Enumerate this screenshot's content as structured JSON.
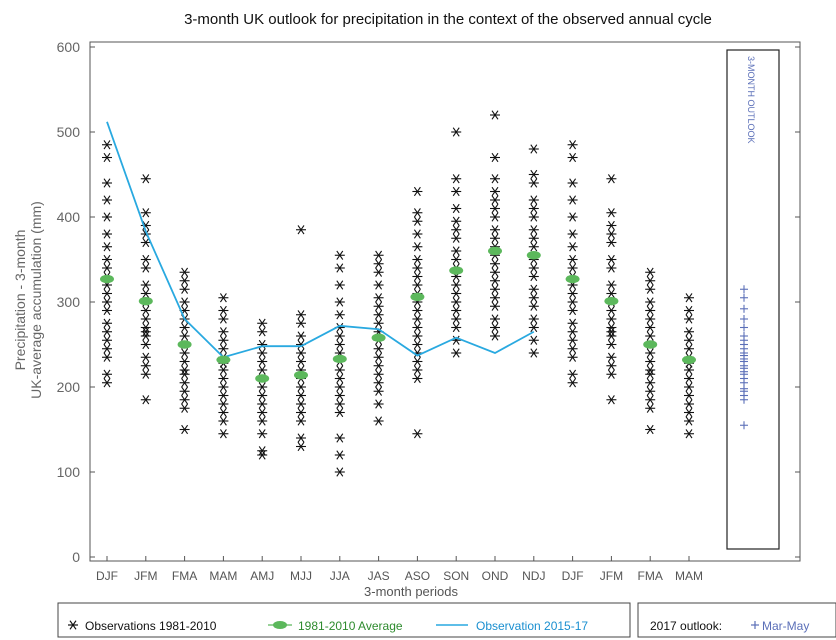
{
  "chart_data": {
    "type": "scatter",
    "title": "3-month UK outlook for precipitation in the context of the observed annual cycle",
    "xlabel": "3-month periods",
    "ylabel_line1": "Precipitation - 3-month",
    "ylabel_line2": "UK-average accumulation (mm)",
    "categories": [
      "DJF",
      "JFM",
      "FMA",
      "MAM",
      "AMJ",
      "MJJ",
      "JJA",
      "JAS",
      "ASO",
      "SON",
      "OND",
      "NDJ",
      "DJF",
      "JFM",
      "FMA",
      "MAM"
    ],
    "ylim": [
      0,
      600
    ],
    "yticks": [
      0,
      100,
      200,
      300,
      400,
      500,
      600
    ],
    "grid": false,
    "observations": [
      [
        485,
        470,
        440,
        420,
        400,
        380,
        365,
        350,
        340,
        330,
        320,
        310,
        300,
        290,
        275,
        265,
        255,
        245,
        235,
        215,
        205
      ],
      [
        445,
        405,
        390,
        380,
        370,
        350,
        340,
        320,
        310,
        300,
        290,
        280,
        270,
        265,
        260,
        250,
        235,
        225,
        215,
        185
      ],
      [
        335,
        325,
        315,
        300,
        290,
        280,
        270,
        260,
        250,
        240,
        230,
        220,
        215,
        205,
        195,
        185,
        175,
        150
      ],
      [
        305,
        290,
        280,
        265,
        255,
        245,
        235,
        228,
        220,
        210,
        200,
        190,
        180,
        170,
        160,
        145
      ],
      [
        275,
        265,
        250,
        240,
        230,
        220,
        210,
        200,
        190,
        180,
        170,
        160,
        145,
        125,
        120
      ],
      [
        385,
        285,
        275,
        260,
        250,
        240,
        230,
        220,
        210,
        200,
        190,
        180,
        170,
        160,
        140,
        130
      ],
      [
        355,
        340,
        320,
        300,
        285,
        270,
        260,
        250,
        240,
        230,
        220,
        210,
        200,
        190,
        180,
        170,
        140,
        120,
        100
      ],
      [
        355,
        345,
        335,
        320,
        305,
        295,
        285,
        275,
        265,
        255,
        245,
        235,
        225,
        215,
        205,
        195,
        180,
        160
      ],
      [
        430,
        405,
        395,
        380,
        365,
        350,
        340,
        330,
        320,
        310,
        300,
        290,
        280,
        270,
        260,
        250,
        240,
        230,
        220,
        210,
        145
      ],
      [
        500,
        445,
        430,
        410,
        395,
        385,
        375,
        360,
        350,
        340,
        330,
        320,
        310,
        300,
        290,
        280,
        270,
        255,
        240
      ],
      [
        520,
        470,
        445,
        430,
        420,
        410,
        400,
        385,
        375,
        365,
        355,
        345,
        335,
        325,
        315,
        305,
        295,
        280,
        270,
        260
      ],
      [
        480,
        450,
        440,
        420,
        410,
        400,
        385,
        375,
        365,
        350,
        340,
        330,
        315,
        305,
        295,
        280,
        270,
        255,
        240
      ],
      [
        485,
        470,
        440,
        420,
        400,
        380,
        365,
        350,
        340,
        330,
        320,
        310,
        300,
        290,
        275,
        265,
        255,
        245,
        235,
        215,
        205
      ],
      [
        445,
        405,
        390,
        380,
        370,
        350,
        340,
        320,
        310,
        300,
        290,
        280,
        270,
        265,
        260,
        250,
        235,
        225,
        215,
        185
      ],
      [
        335,
        325,
        315,
        300,
        290,
        280,
        270,
        260,
        250,
        240,
        230,
        220,
        215,
        205,
        195,
        185,
        175,
        150
      ],
      [
        305,
        290,
        280,
        265,
        255,
        245,
        235,
        228,
        220,
        210,
        200,
        190,
        180,
        170,
        160,
        145
      ]
    ],
    "average_1981_2010": [
      327,
      301,
      250,
      232,
      210,
      214,
      233,
      258,
      306,
      337,
      360,
      355,
      327,
      301,
      250,
      232
    ],
    "observation_2015_17": [
      512,
      383,
      280,
      235,
      248,
      248,
      272,
      268,
      237,
      258,
      240,
      265,
      null,
      null,
      null,
      null
    ],
    "outlook": {
      "label": "3-MONTH OUTLOOK",
      "values": [
        315,
        305,
        292,
        280,
        270,
        260,
        255,
        250,
        245,
        240,
        237,
        233,
        230,
        225,
        222,
        218,
        215,
        210,
        205,
        198,
        195,
        190,
        185,
        155
      ]
    },
    "legend": {
      "observations": "Observations 1981-2010",
      "average": "1981-2010 Average",
      "observation_recent": "Observation 2015-17",
      "outlook_title": "2017 outlook:",
      "outlook_series": "Mar-May"
    },
    "colors": {
      "observations": "#111111",
      "average": "#5cb85c",
      "observation_recent": "#29a9e0",
      "outlook": "#5b6fb8",
      "axis": "#555555"
    }
  }
}
